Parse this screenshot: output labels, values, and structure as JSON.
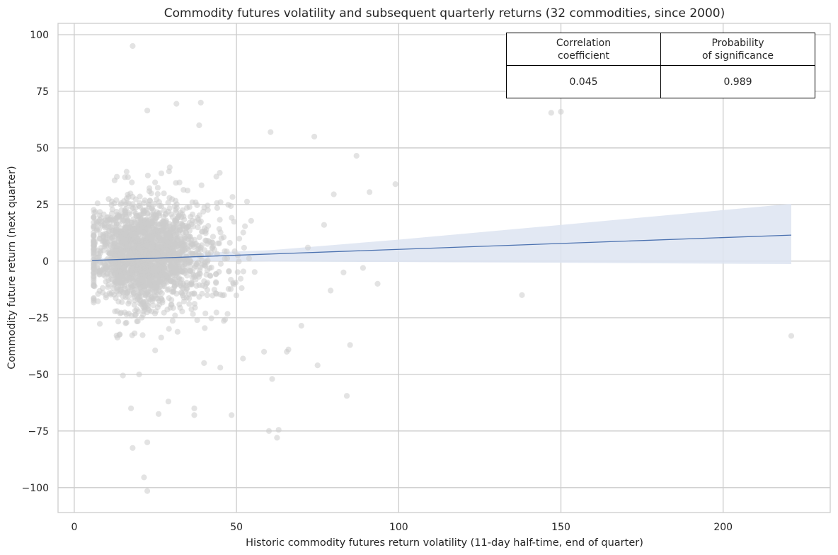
{
  "chart_data": {
    "type": "scatter",
    "title": "Commodity futures volatility and subsequent quarterly returns (32 commodities, since 2000)",
    "xlabel": "Historic commodity futures return volatility (11-day half-time, end of quarter)",
    "ylabel": "Commodity future return (next quarter)",
    "xlim": [
      -5,
      233
    ],
    "ylim": [
      -111,
      105
    ],
    "xticks": [
      0,
      50,
      100,
      150,
      200
    ],
    "yticks": [
      100,
      75,
      50,
      25,
      0,
      -25,
      -50,
      -75,
      -100
    ],
    "xtick_labels": [
      "0",
      "50",
      "100",
      "150",
      "200"
    ],
    "ytick_labels": [
      "100",
      "75",
      "50",
      "25",
      "0",
      "−25",
      "−50",
      "−75",
      "−100"
    ],
    "grid": true,
    "point_color": "#cccccc",
    "regression": {
      "x": [
        5.5,
        221
      ],
      "y": [
        0.3,
        11.5
      ],
      "color": "#4c72b0",
      "ci_color": "#dde4f1",
      "ci_lower": [
        [
          5.5,
          1.5
        ],
        [
          30,
          0.2
        ],
        [
          60,
          -0.2
        ],
        [
          100,
          -0.4
        ],
        [
          150,
          -0.7
        ],
        [
          221,
          -1.3
        ]
      ],
      "ci_upper": [
        [
          5.5,
          -0.9
        ],
        [
          30,
          3.2
        ],
        [
          60,
          4.8
        ],
        [
          100,
          9.5
        ],
        [
          150,
          16
        ],
        [
          221,
          25.3
        ]
      ]
    },
    "outliers": [
      [
        18,
        95
      ],
      [
        22.5,
        66.5
      ],
      [
        31.5,
        69.5
      ],
      [
        39,
        70
      ],
      [
        38.5,
        60
      ],
      [
        60.5,
        57
      ],
      [
        74,
        55
      ],
      [
        87,
        46.5
      ],
      [
        99,
        34
      ],
      [
        91,
        30.5
      ],
      [
        80,
        29.5
      ],
      [
        147,
        65.5
      ],
      [
        150,
        66
      ],
      [
        138,
        -15
      ],
      [
        221,
        -33
      ],
      [
        93.5,
        -10
      ],
      [
        89,
        -3
      ],
      [
        85,
        -37
      ],
      [
        84,
        -59.5
      ],
      [
        75,
        -46
      ],
      [
        70,
        -28.5
      ],
      [
        65.5,
        -40
      ],
      [
        58.5,
        -40
      ],
      [
        62.5,
        -78
      ],
      [
        60,
        -75
      ],
      [
        63,
        -74.5
      ],
      [
        61,
        -52
      ],
      [
        48.5,
        -68
      ],
      [
        37,
        -65
      ],
      [
        37,
        -68
      ],
      [
        29,
        -62
      ],
      [
        26,
        -67.5
      ],
      [
        17.5,
        -65
      ],
      [
        18,
        -82.5
      ],
      [
        22.5,
        -80
      ],
      [
        21.5,
        -95.5
      ],
      [
        22.5,
        -101.5
      ],
      [
        15,
        -50.5
      ],
      [
        20,
        -50
      ],
      [
        45,
        -47
      ],
      [
        52,
        -43
      ],
      [
        40,
        -45
      ],
      [
        66,
        -39
      ],
      [
        79,
        -13
      ],
      [
        83,
        -5
      ],
      [
        72,
        6
      ],
      [
        77,
        16
      ]
    ],
    "cluster": {
      "count": 2200,
      "seed": 7,
      "x_mean": 21,
      "x_sd": 8,
      "x_min": 6,
      "x_max": 58,
      "y_sd": 11.5
    }
  },
  "stats_table": {
    "header": [
      "Correlation\ncoefficient",
      "Probability\nof significance"
    ],
    "values": [
      "0.045",
      "0.989"
    ]
  }
}
